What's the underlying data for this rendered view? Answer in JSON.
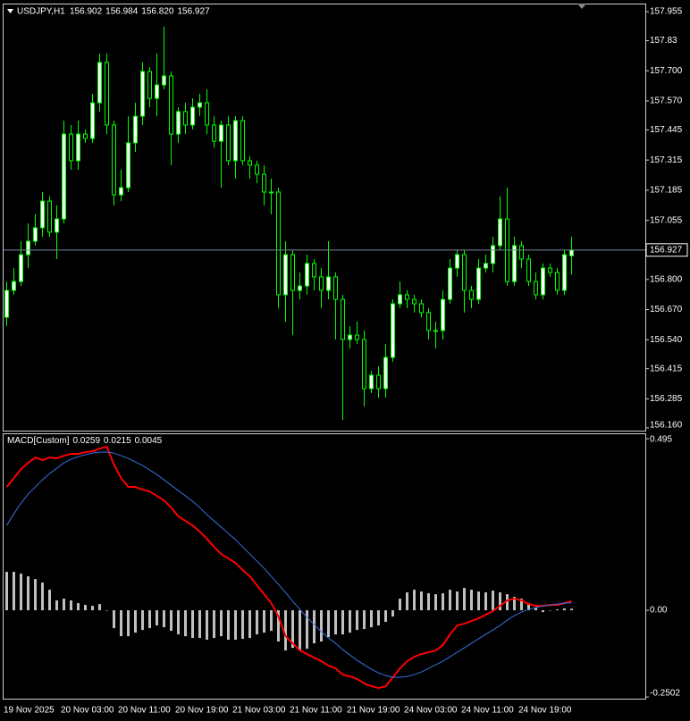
{
  "chart_data": [
    {
      "type": "candlestick",
      "title": "USDJPY,H1",
      "value_labels": [
        "156.902",
        "156.984",
        "156.820",
        "156.927"
      ],
      "color": "#00ff00",
      "up_fill": "#ffffff",
      "down_fill": "#000000",
      "price_line_color": "#778899",
      "categories": [
        "19 Nov 2025",
        null,
        null,
        null,
        null,
        null,
        null,
        null,
        "20 Nov 03:00",
        null,
        null,
        null,
        null,
        null,
        null,
        null,
        "20 Nov 11:00",
        null,
        null,
        null,
        null,
        null,
        null,
        null,
        "20 Nov 19:00",
        null,
        null,
        null,
        null,
        null,
        null,
        null,
        "21 Nov 03:00",
        null,
        null,
        null,
        null,
        null,
        null,
        null,
        "21 Nov 11:00",
        null,
        null,
        null,
        null,
        null,
        null,
        null,
        "21 Nov 19:00",
        null,
        null,
        null,
        null,
        null,
        null,
        null,
        "24 Nov 03:00",
        null,
        null,
        null,
        null,
        null,
        null,
        null,
        "24 Nov 11:00",
        null,
        null,
        null,
        null,
        null,
        null,
        null,
        "24 Nov 19:00",
        null,
        null,
        null,
        null,
        null,
        null,
        null
      ],
      "open": [
        156.637,
        156.753,
        156.791,
        156.907,
        156.965,
        157.023,
        157.138,
        157.004,
        157.061,
        157.427,
        157.312,
        157.427,
        157.408,
        157.562,
        157.736,
        157.466,
        157.165,
        157.196,
        157.389,
        157.504,
        157.697,
        157.581,
        157.639,
        157.678,
        157.427,
        157.524,
        157.466,
        157.543,
        157.562,
        157.466,
        157.396,
        157.466,
        157.312,
        157.485,
        157.312,
        157.293,
        157.254,
        157.177,
        157.177,
        156.734,
        156.907,
        156.753,
        156.772,
        156.869,
        156.811,
        156.753,
        156.811,
        156.714,
        156.541,
        156.56,
        156.541,
        156.329,
        156.387,
        156.329,
        156.464,
        156.695,
        156.734,
        156.714,
        156.695,
        156.657,
        156.58,
        156.58,
        156.714,
        156.849,
        156.907,
        156.753,
        156.714,
        156.849,
        156.869,
        156.946,
        157.061,
        156.791,
        156.946,
        156.888,
        156.791,
        156.734,
        156.849,
        156.83,
        156.753,
        156.902
      ],
      "high": [
        156.791,
        156.849,
        156.965,
        157.042,
        157.081,
        157.177,
        157.158,
        157.119,
        157.485,
        157.466,
        157.485,
        157.447,
        157.601,
        157.774,
        157.774,
        157.485,
        157.273,
        157.504,
        157.562,
        157.736,
        157.716,
        157.774,
        157.89,
        157.697,
        157.543,
        157.562,
        157.581,
        157.601,
        157.62,
        157.504,
        157.485,
        157.504,
        157.504,
        157.504,
        157.331,
        157.312,
        157.293,
        157.235,
        157.196,
        156.965,
        156.926,
        156.83,
        156.907,
        156.888,
        156.849,
        156.965,
        156.83,
        156.734,
        156.599,
        156.618,
        156.58,
        156.406,
        156.425,
        156.522,
        156.714,
        156.791,
        156.753,
        156.734,
        156.714,
        156.676,
        156.618,
        156.753,
        156.888,
        156.926,
        156.926,
        156.772,
        156.888,
        156.907,
        156.984,
        157.158,
        157.196,
        156.984,
        156.965,
        156.907,
        156.83,
        156.869,
        156.869,
        156.849,
        156.926,
        156.984
      ],
      "low": [
        156.599,
        156.734,
        156.772,
        156.849,
        156.946,
        156.984,
        156.984,
        156.888,
        157.042,
        157.273,
        157.273,
        157.389,
        157.389,
        157.524,
        157.427,
        157.119,
        157.138,
        157.177,
        157.35,
        157.466,
        157.543,
        157.504,
        157.62,
        157.293,
        157.389,
        157.427,
        157.447,
        157.504,
        157.427,
        157.369,
        157.196,
        157.293,
        157.235,
        157.293,
        157.235,
        157.215,
        157.119,
        157.081,
        156.676,
        156.618,
        156.56,
        156.714,
        156.734,
        156.753,
        156.676,
        156.714,
        156.541,
        156.194,
        156.502,
        156.522,
        156.252,
        156.31,
        156.29,
        156.29,
        156.445,
        156.676,
        156.676,
        156.657,
        156.637,
        156.541,
        156.502,
        156.541,
        156.695,
        156.811,
        156.657,
        156.676,
        156.695,
        156.83,
        156.83,
        156.926,
        156.772,
        156.772,
        156.849,
        156.772,
        156.714,
        156.714,
        156.811,
        156.734,
        156.734,
        156.82
      ],
      "close": [
        156.753,
        156.791,
        156.907,
        156.965,
        157.023,
        157.138,
        157.004,
        157.061,
        157.427,
        157.312,
        157.427,
        157.408,
        157.562,
        157.736,
        157.466,
        157.165,
        157.196,
        157.389,
        157.504,
        157.697,
        157.581,
        157.639,
        157.678,
        157.427,
        157.524,
        157.466,
        157.543,
        157.562,
        157.466,
        157.396,
        157.466,
        157.312,
        157.485,
        157.312,
        157.293,
        157.254,
        157.177,
        157.177,
        156.734,
        156.907,
        156.753,
        156.772,
        156.869,
        156.811,
        156.753,
        156.811,
        156.714,
        156.541,
        156.56,
        156.541,
        156.329,
        156.387,
        156.329,
        156.464,
        156.695,
        156.734,
        156.714,
        156.695,
        156.657,
        156.58,
        156.58,
        156.714,
        156.849,
        156.907,
        156.753,
        156.714,
        156.849,
        156.869,
        156.946,
        157.061,
        156.791,
        156.946,
        156.888,
        156.791,
        156.734,
        156.849,
        156.83,
        156.753,
        156.907,
        156.927
      ],
      "ylim": [
        156.148,
        157.986
      ],
      "yticks": [
        157.955,
        157.83,
        {
          "value": 157.7,
          "label": "157.700"
        },
        {
          "value": 157.57,
          "label": "157.570"
        },
        157.445,
        157.315,
        157.185,
        157.055,
        {
          "value": 156.8,
          "label": "156.800"
        },
        {
          "value": 156.67,
          "label": "156.670"
        },
        {
          "value": 156.54,
          "label": "156.540"
        },
        156.415,
        156.285,
        {
          "value": 156.16,
          "label": "156.160"
        }
      ]
    },
    {
      "type": "line",
      "title": "MACD[Custom]",
      "ylim": [
        -0.255,
        0.508
      ],
      "yticks": [
        0.495,
        {
          "value": 0,
          "label": "0.00"
        },
        -0.2502
      ],
      "series": [
        {
          "type": "line",
          "color": "#ff0000",
          "values": [
            0.3558,
            0.3815,
            0.4073,
            0.4254,
            0.4408,
            0.4331,
            0.4408,
            0.4383,
            0.446,
            0.4512,
            0.4512,
            0.4563,
            0.4589,
            0.4666,
            0.4718,
            0.4202,
            0.3815,
            0.3558,
            0.3558,
            0.348,
            0.3429,
            0.33,
            0.3171,
            0.2965,
            0.2707,
            0.2578,
            0.2449,
            0.2269,
            0.2062,
            0.183,
            0.1624,
            0.1495,
            0.1366,
            0.116,
            0.098,
            0.0722,
            0.0464,
            0.0206,
            -0.018,
            -0.0748,
            -0.0954,
            -0.116,
            -0.1263,
            -0.1366,
            -0.1469,
            -0.1598,
            -0.1676,
            -0.1856,
            -0.1908,
            -0.1985,
            -0.2114,
            -0.2191,
            -0.2243,
            -0.2191,
            -0.1934,
            -0.1676,
            -0.1469,
            -0.1341,
            -0.1263,
            -0.1212,
            -0.116,
            -0.1005,
            -0.0696,
            -0.0438,
            -0.0387,
            -0.0309,
            -0.0232,
            -0.0129,
            -0.0026,
            0.0129,
            0.0284,
            0.0335,
            0.0284,
            0.018,
            0.0129,
            0.0129,
            0.0155,
            0.0155,
            0.0206,
            0.0259
          ]
        },
        {
          "type": "line",
          "color": "#3a6fe0",
          "values": [
            0.2449,
            0.2784,
            0.3094,
            0.3351,
            0.3558,
            0.3764,
            0.3944,
            0.4099,
            0.4254,
            0.4357,
            0.4434,
            0.4486,
            0.4537,
            0.4563,
            0.4563,
            0.4537,
            0.446,
            0.4383,
            0.4279,
            0.4176,
            0.4047,
            0.3919,
            0.3764,
            0.3609,
            0.3455,
            0.33,
            0.3145,
            0.2965,
            0.2758,
            0.2578,
            0.2398,
            0.2217,
            0.2037,
            0.183,
            0.1624,
            0.1418,
            0.1212,
            0.098,
            0.0748,
            0.0516,
            0.0258,
            0.0026,
            -0.0206,
            -0.0412,
            -0.0619,
            -0.0799,
            -0.0954,
            -0.1134,
            -0.1289,
            -0.1444,
            -0.1573,
            -0.1701,
            -0.1805,
            -0.1882,
            -0.1934,
            -0.1934,
            -0.1908,
            -0.1856,
            -0.1779,
            -0.1676,
            -0.1573,
            -0.1469,
            -0.1341,
            -0.1212,
            -0.1083,
            -0.0954,
            -0.0825,
            -0.0696,
            -0.0567,
            -0.0438,
            -0.0284,
            -0.0155,
            -0.0052,
            0.0026,
            0.0077,
            0.0129,
            0.0155,
            0.018,
            0.0206,
            0.0215
          ]
        },
        {
          "type": "bar",
          "color": "#c0c0c0",
          "values": [
            0.1109,
            0.1109,
            0.1057,
            0.098,
            0.0902,
            0.0799,
            0.0593,
            0.0284,
            0.0335,
            0.0284,
            0.0206,
            0.0155,
            0.0129,
            0.018,
            0,
            -0.0516,
            -0.0748,
            -0.0748,
            -0.0645,
            -0.0567,
            -0.0516,
            -0.0438,
            -0.049,
            -0.0593,
            -0.0696,
            -0.0748,
            -0.0799,
            -0.0799,
            -0.0851,
            -0.0799,
            -0.0748,
            -0.0851,
            -0.0851,
            -0.0825,
            -0.0799,
            -0.0696,
            -0.0645,
            -0.0593,
            -0.0902,
            -0.116,
            -0.1083,
            -0.116,
            -0.1109,
            -0.0954,
            -0.0902,
            -0.0773,
            -0.0696,
            -0.0696,
            -0.0645,
            -0.0567,
            -0.0541,
            -0.049,
            -0.0438,
            -0.0335,
            -0.018,
            0.0335,
            0.0516,
            0.0593,
            0.0541,
            0.049,
            0.0464,
            0.049,
            0.0593,
            0.0541,
            0.0645,
            0.0593,
            0.0541,
            0.0516,
            0.0567,
            0.0516,
            0.0464,
            0.0387,
            0.0335,
            0.0206,
            0.0077,
            -0.0052,
            0,
            0.0026,
            0.0052,
            0.0045
          ]
        }
      ]
    }
  ]
}
